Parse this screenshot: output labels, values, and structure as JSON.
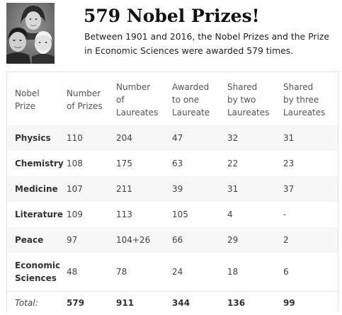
{
  "header": {
    "title": "579 Nobel Prizes!",
    "subtitle": "Between 1901 and 2016, the Nobel Prizes and the Prize in Economic Sciences were awarded 579 times."
  },
  "table": {
    "columns": [
      [
        "Nobel",
        "Prize"
      ],
      [
        "Number",
        "of Prizes"
      ],
      [
        "Number",
        "of",
        "Laureates"
      ],
      [
        "Awarded",
        "to one",
        "Laureate"
      ],
      [
        "Shared",
        "by two",
        "Laureates"
      ],
      [
        "Shared",
        "by three",
        "Laureates"
      ]
    ],
    "rows": [
      {
        "name": [
          "Physics"
        ],
        "prizes": "110",
        "laureates": "204",
        "one": "47",
        "two": "32",
        "three": "31"
      },
      {
        "name": [
          "Chemistry"
        ],
        "prizes": "108",
        "laureates": "175",
        "one": "63",
        "two": "22",
        "three": "23"
      },
      {
        "name": [
          "Medicine"
        ],
        "prizes": "107",
        "laureates": "211",
        "one": "39",
        "two": "31",
        "three": "37"
      },
      {
        "name": [
          "Literature"
        ],
        "prizes": "109",
        "laureates": "113",
        "one": "105",
        "two": "4",
        "three": "-"
      },
      {
        "name": [
          "Peace"
        ],
        "prizes": "97",
        "laureates": "104+26",
        "one": "66",
        "two": "29",
        "three": "2"
      },
      {
        "name": [
          "Economic",
          "Sciences"
        ],
        "prizes": "48",
        "laureates": "78",
        "one": "24",
        "two": "18",
        "three": "6"
      }
    ],
    "total": {
      "label": "Total:",
      "prizes": "579",
      "laureates": "911",
      "one": "344",
      "two": "136",
      "three": "99"
    }
  },
  "photo": {
    "icon": "laureates-portrait-photo",
    "tone": "#7d7d7d"
  }
}
